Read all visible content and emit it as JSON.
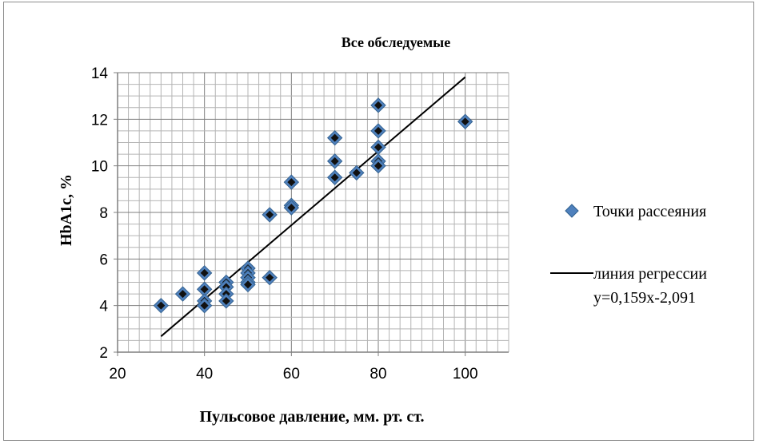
{
  "chart_data": {
    "type": "scatter",
    "title": "Все обследуемые",
    "xlabel": "Пульсовое давление, мм. рт. ст.",
    "ylabel": "HbA1c, %",
    "xlim": [
      20,
      110
    ],
    "ylim": [
      2,
      14
    ],
    "x_ticks": [
      20,
      40,
      60,
      80,
      100
    ],
    "y_ticks": [
      2,
      4,
      6,
      8,
      10,
      12,
      14
    ],
    "grid": true,
    "legend_position": "right",
    "series": [
      {
        "name": "Точки рассеяния",
        "type": "scatter",
        "marker": "diamond",
        "color": "#4f81bd",
        "points": [
          [
            30,
            4.0
          ],
          [
            35,
            4.5
          ],
          [
            40,
            5.4
          ],
          [
            40,
            4.7
          ],
          [
            40,
            4.2
          ],
          [
            40,
            4.0
          ],
          [
            45,
            5.0
          ],
          [
            45,
            4.8
          ],
          [
            45,
            4.5
          ],
          [
            45,
            4.2
          ],
          [
            50,
            5.6
          ],
          [
            50,
            5.4
          ],
          [
            50,
            5.2
          ],
          [
            50,
            5.0
          ],
          [
            50,
            4.9
          ],
          [
            55,
            7.9
          ],
          [
            55,
            5.2
          ],
          [
            60,
            9.3
          ],
          [
            60,
            8.3
          ],
          [
            60,
            8.2
          ],
          [
            70,
            11.2
          ],
          [
            70,
            10.2
          ],
          [
            70,
            9.5
          ],
          [
            75,
            9.7
          ],
          [
            80,
            12.6
          ],
          [
            80,
            11.5
          ],
          [
            80,
            10.8
          ],
          [
            80,
            10.2
          ],
          [
            80,
            10.0
          ],
          [
            100,
            11.9
          ]
        ]
      },
      {
        "name": "линия регрессии y=0,159x-2,091",
        "name_lines": [
          "линия регрессии",
          "y=0,159x-2,091"
        ],
        "type": "line",
        "color": "#000000",
        "x": [
          30,
          100
        ],
        "y": [
          2.679,
          13.809
        ]
      }
    ]
  }
}
